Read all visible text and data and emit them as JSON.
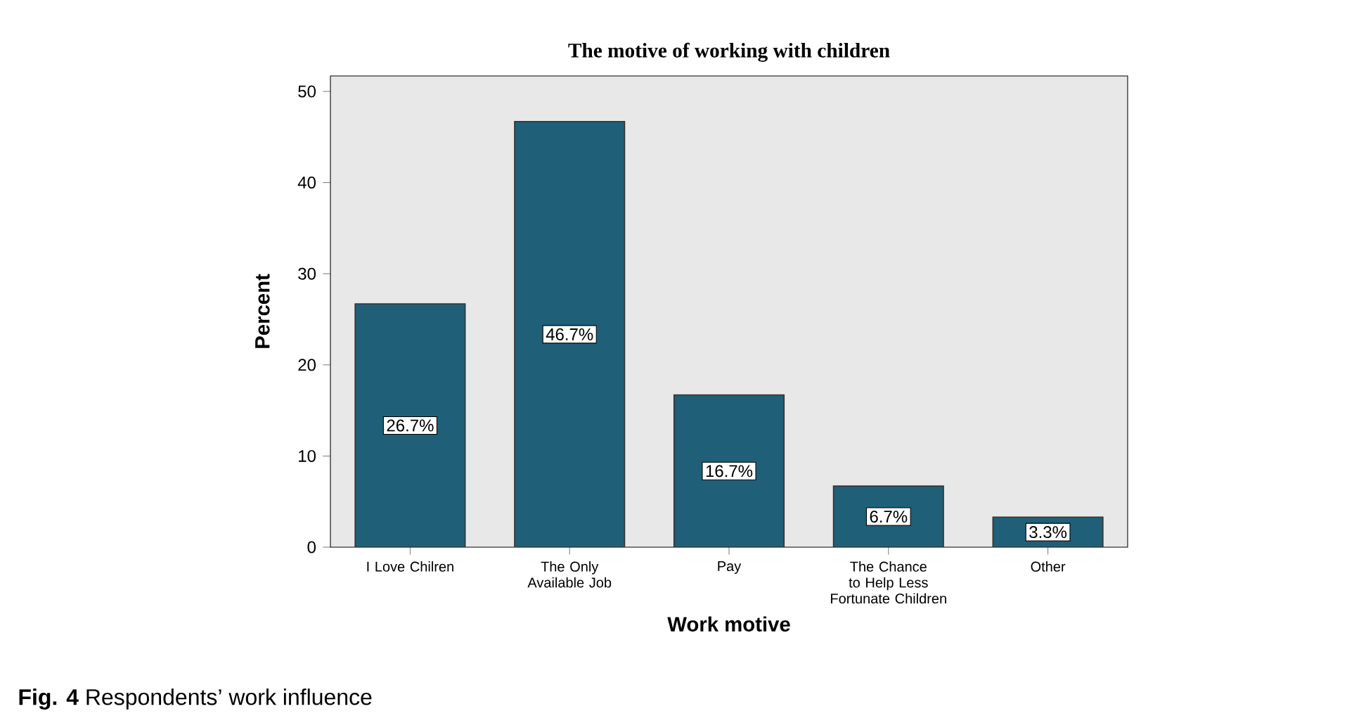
{
  "chart_data": {
    "type": "bar",
    "title": "The motive of working with children",
    "categories": [
      "I Love Chilren",
      "The Only Available Job",
      "Pay",
      "The Chance to Help Less Fortunate Children",
      "Other"
    ],
    "values": [
      26.7,
      46.7,
      16.7,
      6.7,
      3.3
    ],
    "value_labels": [
      "26.7%",
      "46.7%",
      "16.7%",
      "6.7%",
      "3.3%"
    ],
    "color": "#1f5f78",
    "xlabel": "Work motive",
    "ylabel": "Percent",
    "ylim": [
      0,
      51.7
    ],
    "yticks": [
      0,
      10,
      20,
      30,
      40,
      50
    ],
    "annotations": [
      "**Fig. 4** Respondents’ work influence"
    ]
  }
}
